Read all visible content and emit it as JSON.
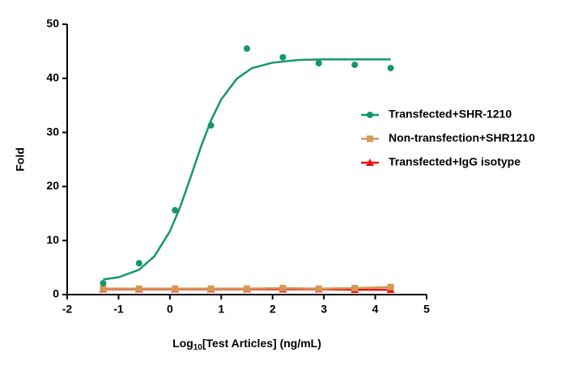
{
  "chart_data": {
    "type": "scatter",
    "x_label": [
      "Log",
      "10",
      "[Test Articles] (ng/mL)"
    ],
    "y_label": "Fold",
    "xlim": [
      -2,
      5
    ],
    "xticks": [
      -2,
      -1,
      0,
      1,
      2,
      3,
      4,
      5
    ],
    "ylim": [
      0,
      50
    ],
    "yticks": [
      0,
      10,
      20,
      30,
      40,
      50
    ],
    "series": [
      {
        "name": "Transfected+SHR-1210",
        "color": "#16966a",
        "marker": "circle",
        "x": [
          -1.3,
          -0.6,
          0.1,
          0.8,
          1.5,
          2.2,
          2.9,
          3.6,
          4.3
        ],
        "values": [
          2.1,
          5.8,
          15.6,
          31.3,
          45.5,
          43.9,
          42.8,
          42.5,
          41.9
        ],
        "fit_x": [
          -1.3,
          -1,
          -0.6,
          -0.3,
          0,
          0.2,
          0.4,
          0.6,
          0.8,
          1,
          1.3,
          1.6,
          2,
          2.5,
          3,
          4.3
        ],
        "fit_values": [
          2.8,
          3.2,
          4.6,
          7.1,
          11.7,
          16.2,
          21.6,
          27.2,
          32.2,
          36.1,
          39.9,
          41.9,
          42.9,
          43.4,
          43.5,
          43.5
        ]
      },
      {
        "name": "Non-transfection+SHR1210",
        "color": "#d09a55",
        "marker": "square",
        "x": [
          -1.3,
          -0.6,
          0.1,
          0.8,
          1.5,
          2.2,
          2.9,
          3.6,
          4.3
        ],
        "values": [
          1.1,
          1.1,
          1.1,
          1.1,
          1.1,
          1.2,
          1.1,
          1.2,
          1.4
        ]
      },
      {
        "name": "Transfected+IgG isotype",
        "color": "#ee1111",
        "marker": "triangle",
        "x": [
          -1.3,
          -0.6,
          0.1,
          0.8,
          1.5,
          2.2,
          2.9,
          3.6,
          4.3
        ],
        "values": [
          1.0,
          1.0,
          1.0,
          1.0,
          1.0,
          1.0,
          1.0,
          0.9,
          0.9
        ]
      }
    ]
  }
}
